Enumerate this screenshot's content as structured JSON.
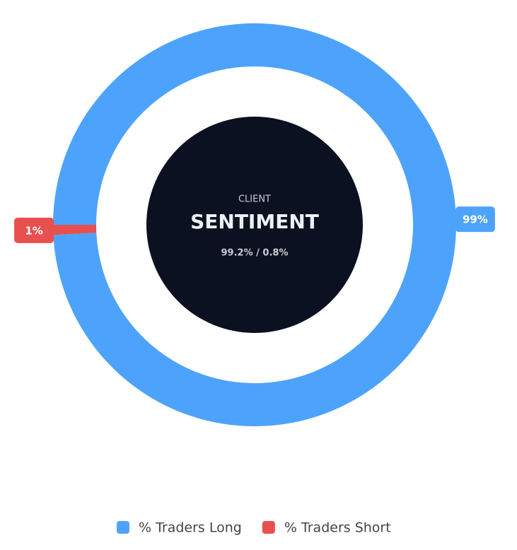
{
  "chart_data": {
    "type": "donut",
    "center_label": "CLIENT",
    "center_title": "SENTIMENT",
    "center_subtitle": "99.2% / 0.8%",
    "categories": [
      "% Traders Long",
      "% Traders Short"
    ],
    "values": [
      99.2,
      0.8
    ],
    "value_labels": [
      "99%",
      "1%"
    ],
    "colors": [
      "#4da3fc",
      "#e8504f"
    ],
    "legend": "bottom"
  }
}
